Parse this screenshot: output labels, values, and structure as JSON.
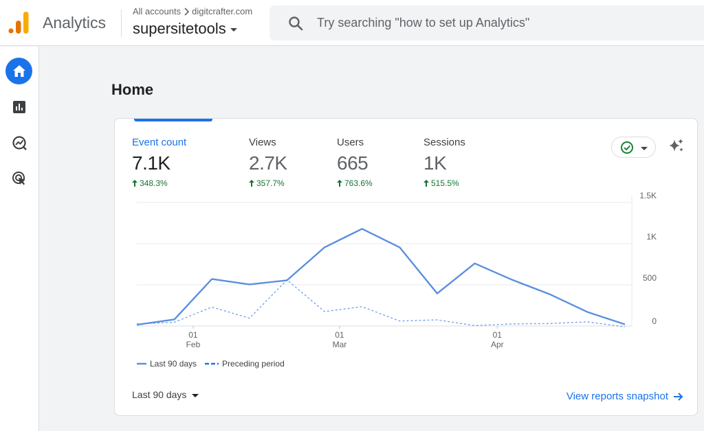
{
  "header": {
    "app_name": "Analytics",
    "account_crumb": "All accounts",
    "account_domain": "digitcrafter.com",
    "property_name": "supersitetools",
    "search_placeholder": "Try searching \"how to set up Analytics\""
  },
  "sidenav": {
    "items": [
      {
        "name": "home-icon",
        "active": true
      },
      {
        "name": "reports-icon",
        "active": false
      },
      {
        "name": "explore-icon",
        "active": false
      },
      {
        "name": "advertising-icon",
        "active": false
      }
    ]
  },
  "page": {
    "title": "Home"
  },
  "card": {
    "metrics": [
      {
        "label": "Event count",
        "value": "7.1K",
        "delta": "348.3%",
        "active": true
      },
      {
        "label": "Views",
        "value": "2.7K",
        "delta": "357.7%",
        "active": false
      },
      {
        "label": "Users",
        "value": "665",
        "delta": "763.6%",
        "active": false
      },
      {
        "label": "Sessions",
        "value": "1K",
        "delta": "515.5%",
        "active": false
      }
    ],
    "legend": {
      "current": "Last 90 days",
      "previous": "Preceding period"
    },
    "date_range": "Last 90 days",
    "view_link": "View reports snapshot"
  },
  "colors": {
    "accent": "#1a73e8",
    "line": "#5b8fde",
    "positive": "#137333",
    "ok": "#188038"
  },
  "chart_data": {
    "type": "line",
    "x": [
      0,
      1,
      2,
      3,
      4,
      5,
      6,
      7,
      8,
      9,
      10,
      11,
      12,
      13
    ],
    "x_tick_labels": [
      {
        "at": 1.5,
        "day": "01",
        "month": "Feb"
      },
      {
        "at": 5.4,
        "day": "01",
        "month": "Mar"
      },
      {
        "at": 9.6,
        "day": "01",
        "month": "Apr"
      }
    ],
    "series": [
      {
        "name": "Last 90 days",
        "style": "solid",
        "values": [
          15,
          80,
          570,
          505,
          555,
          955,
          1180,
          955,
          395,
          760,
          560,
          385,
          170,
          20
        ]
      },
      {
        "name": "Preceding period",
        "style": "dashed",
        "values": [
          25,
          45,
          230,
          95,
          560,
          175,
          235,
          60,
          75,
          5,
          25,
          30,
          50,
          -10
        ]
      }
    ],
    "y_ticks": [
      {
        "value": 0,
        "label": "0"
      },
      {
        "value": 500,
        "label": "500"
      },
      {
        "value": 1000,
        "label": "1K"
      },
      {
        "value": 1500,
        "label": "1.5K"
      }
    ],
    "ylim": [
      0,
      1500
    ],
    "grid": true
  }
}
